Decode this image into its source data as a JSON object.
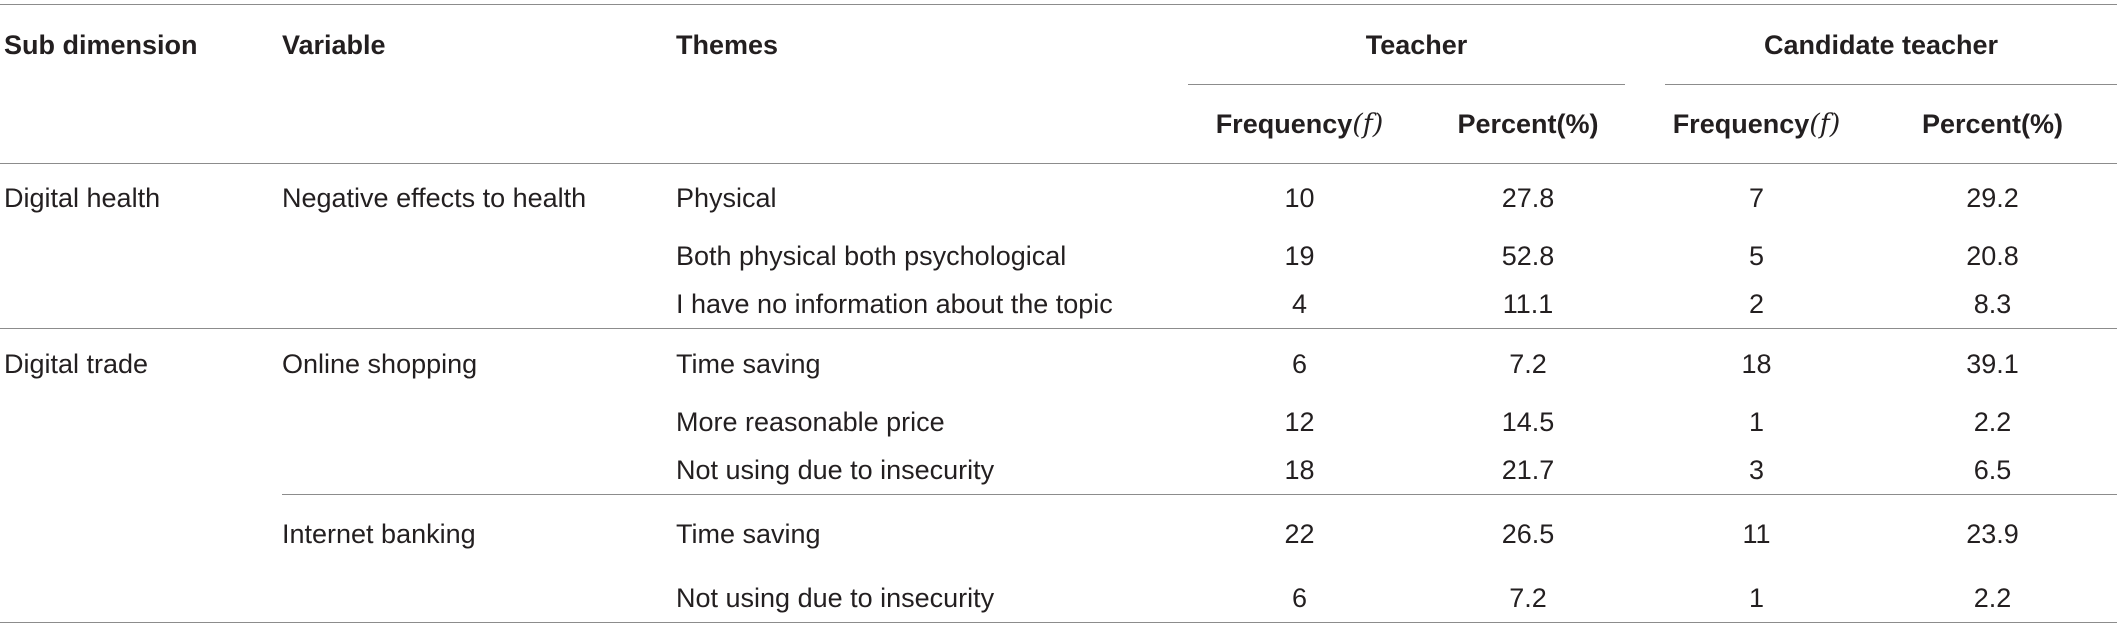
{
  "headers": {
    "sub_dimension": "Sub dimension",
    "variable": "Variable",
    "themes": "Themes",
    "teacher": "Teacher",
    "candidate_teacher": "Candidate teacher",
    "frequency": "Frequency",
    "frequency_symbol": "(f)",
    "percent": "Percent",
    "percent_symbol": "(%)"
  },
  "rows": [
    {
      "sub_dimension": "Digital health",
      "variable": "Negative effects to health",
      "theme": "Physical",
      "teacher_f": "10",
      "teacher_p": "27.8",
      "candidate_f": "7",
      "candidate_p": "29.2"
    },
    {
      "sub_dimension": "",
      "variable": "",
      "theme": "Both physical both psychological",
      "teacher_f": "19",
      "teacher_p": "52.8",
      "candidate_f": "5",
      "candidate_p": "20.8"
    },
    {
      "sub_dimension": "",
      "variable": "",
      "theme": "I have no information about the topic",
      "teacher_f": "4",
      "teacher_p": "11.1",
      "candidate_f": "2",
      "candidate_p": "8.3"
    },
    {
      "sub_dimension": "Digital trade",
      "variable": "Online shopping",
      "theme": "Time saving",
      "teacher_f": "6",
      "teacher_p": "7.2",
      "candidate_f": "18",
      "candidate_p": "39.1"
    },
    {
      "sub_dimension": "",
      "variable": "",
      "theme": "More reasonable price",
      "teacher_f": "12",
      "teacher_p": "14.5",
      "candidate_f": "1",
      "candidate_p": "2.2"
    },
    {
      "sub_dimension": "",
      "variable": "",
      "theme": "Not using due to insecurity",
      "teacher_f": "18",
      "teacher_p": "21.7",
      "candidate_f": "3",
      "candidate_p": "6.5"
    },
    {
      "sub_dimension": "",
      "variable": "Internet banking",
      "theme": "Time saving",
      "teacher_f": "22",
      "teacher_p": "26.5",
      "candidate_f": "11",
      "candidate_p": "23.9"
    },
    {
      "sub_dimension": "",
      "variable": "",
      "theme": "Not using due to insecurity",
      "teacher_f": "6",
      "teacher_p": "7.2",
      "candidate_f": "1",
      "candidate_p": "2.2"
    }
  ]
}
